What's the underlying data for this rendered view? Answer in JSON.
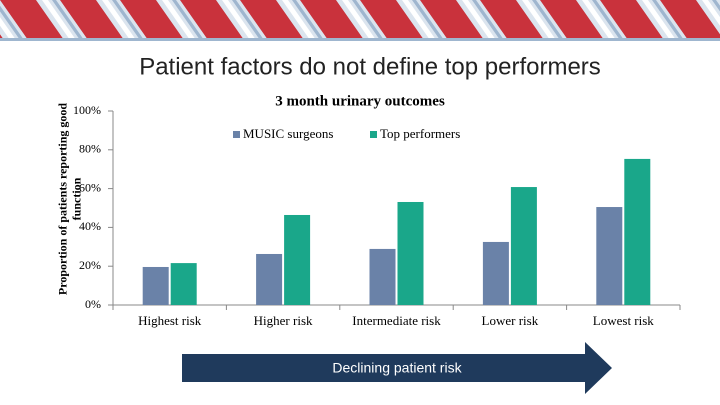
{
  "slide_title": "Patient factors do not define top performers",
  "chart_data": {
    "type": "bar",
    "title": "3 month urinary outcomes",
    "y_label": "Proportion of patients reporting good function",
    "categories": [
      "Highest risk",
      "Higher risk",
      "Intermediate risk",
      "Lower risk",
      "Lowest risk"
    ],
    "series": [
      {
        "name": "MUSIC surgeons",
        "color": "#6a82a8",
        "values": [
          19.6,
          26.3,
          28.9,
          32.5,
          50.5
        ]
      },
      {
        "name": "Top performers",
        "color": "#1aa78a",
        "values": [
          21.6,
          46.4,
          53.1,
          60.8,
          75.3
        ]
      }
    ],
    "ylim": [
      0,
      100
    ],
    "yticks": [
      {
        "value": 0,
        "label": "0%"
      },
      {
        "value": 20,
        "label": "20%"
      },
      {
        "value": 40,
        "label": "40%"
      },
      {
        "value": 60,
        "label": "60%"
      },
      {
        "value": 80,
        "label": "80%"
      },
      {
        "value": 100,
        "label": "100%"
      }
    ],
    "legend": "top",
    "annotation": "Declining patient risk"
  }
}
